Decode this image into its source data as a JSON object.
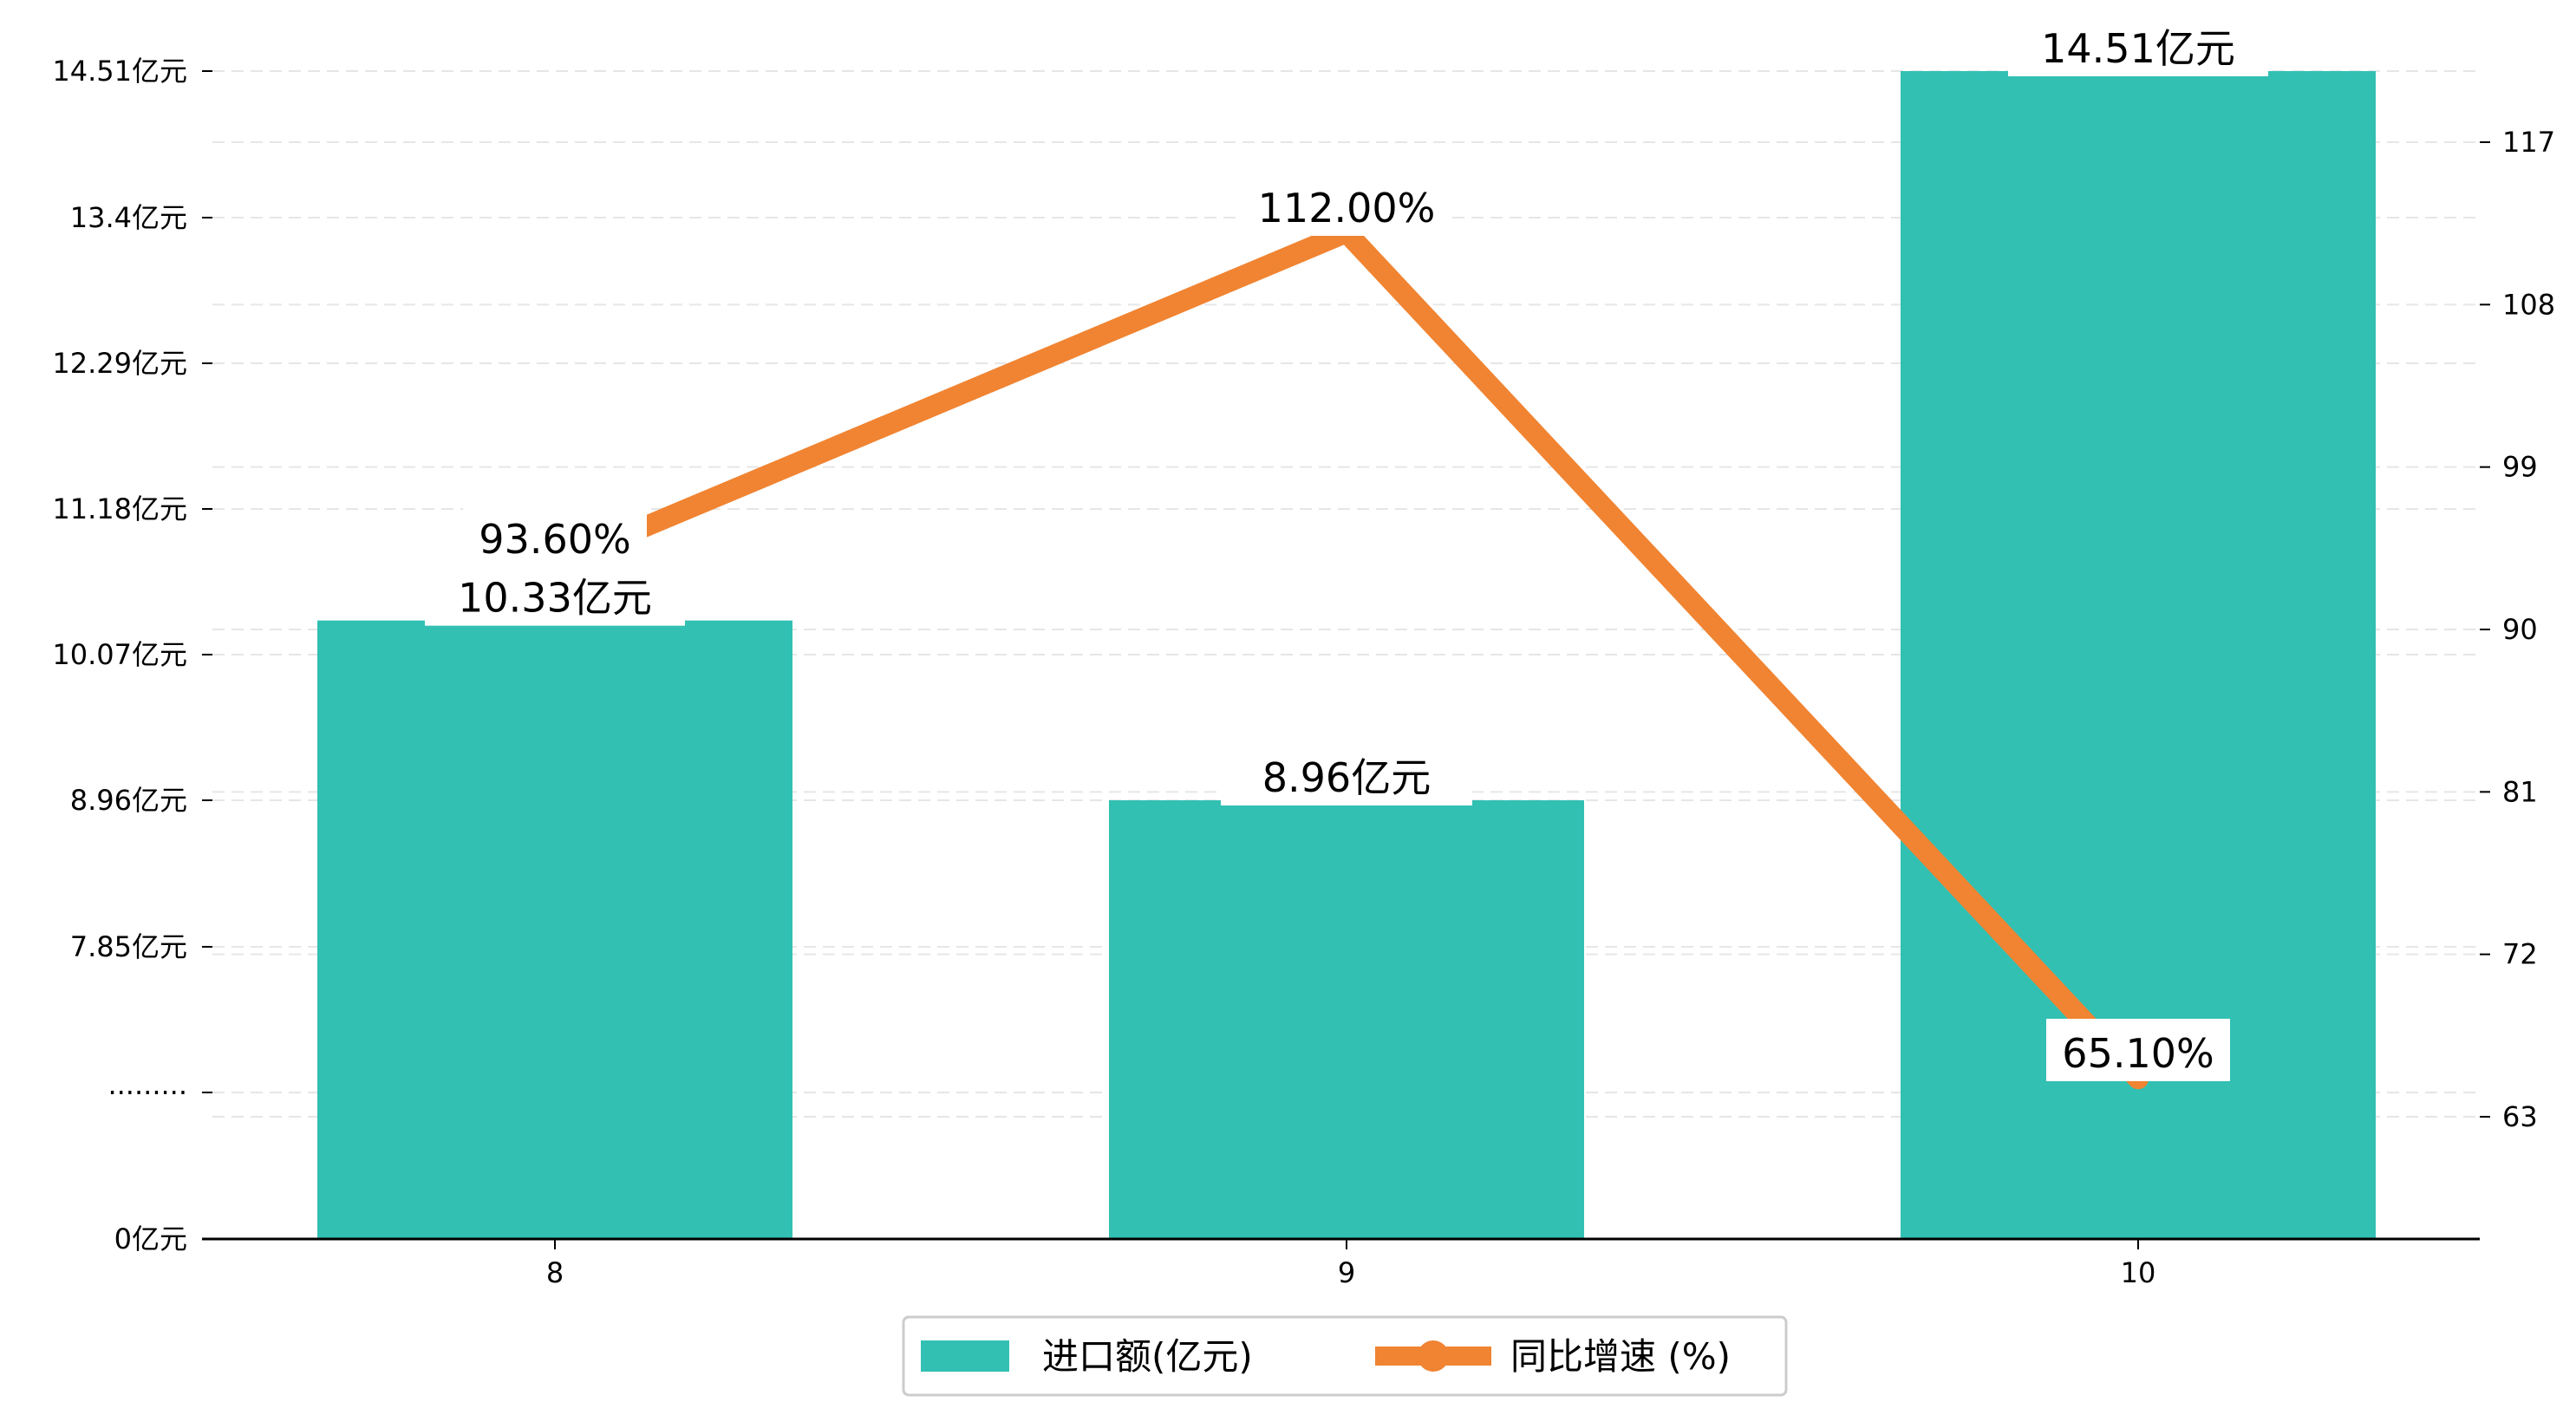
{
  "chart_data": {
    "type": "bar+line",
    "categories": [
      "8",
      "9",
      "10"
    ],
    "series": [
      {
        "name": "进口额(亿元)",
        "type": "bar",
        "axis": "left",
        "values": [
          10.33,
          8.96,
          14.51
        ],
        "labels": [
          "10.33亿元",
          "8.96亿元",
          "14.51亿元"
        ],
        "color": "#32c0b3"
      },
      {
        "name": "同比增速 (%)",
        "type": "line",
        "axis": "right",
        "values": [
          93.6,
          112.0,
          65.1
        ],
        "labels": [
          "93.60%",
          "112.00%",
          "65.10%"
        ],
        "color": "#f08432"
      }
    ],
    "left_axis": {
      "ticks": [
        {
          "value": 0,
          "label": "0亿元"
        },
        {
          "value": 6.74,
          "label": "·········"
        },
        {
          "value": 7.85,
          "label": "7.85亿元"
        },
        {
          "value": 8.96,
          "label": "8.96亿元"
        },
        {
          "value": 10.07,
          "label": "10.07亿元"
        },
        {
          "value": 11.18,
          "label": "11.18亿元"
        },
        {
          "value": 12.29,
          "label": "12.29亿元"
        },
        {
          "value": 13.4,
          "label": "13.4亿元"
        },
        {
          "value": 14.51,
          "label": "14.51亿元"
        }
      ],
      "broken": true
    },
    "right_axis": {
      "ticks": [
        63,
        72,
        81,
        90,
        99,
        108,
        117
      ],
      "ylim": [
        56.1,
        123
      ]
    },
    "grid": "horizontal dashed",
    "legend_position": "bottom-center"
  }
}
